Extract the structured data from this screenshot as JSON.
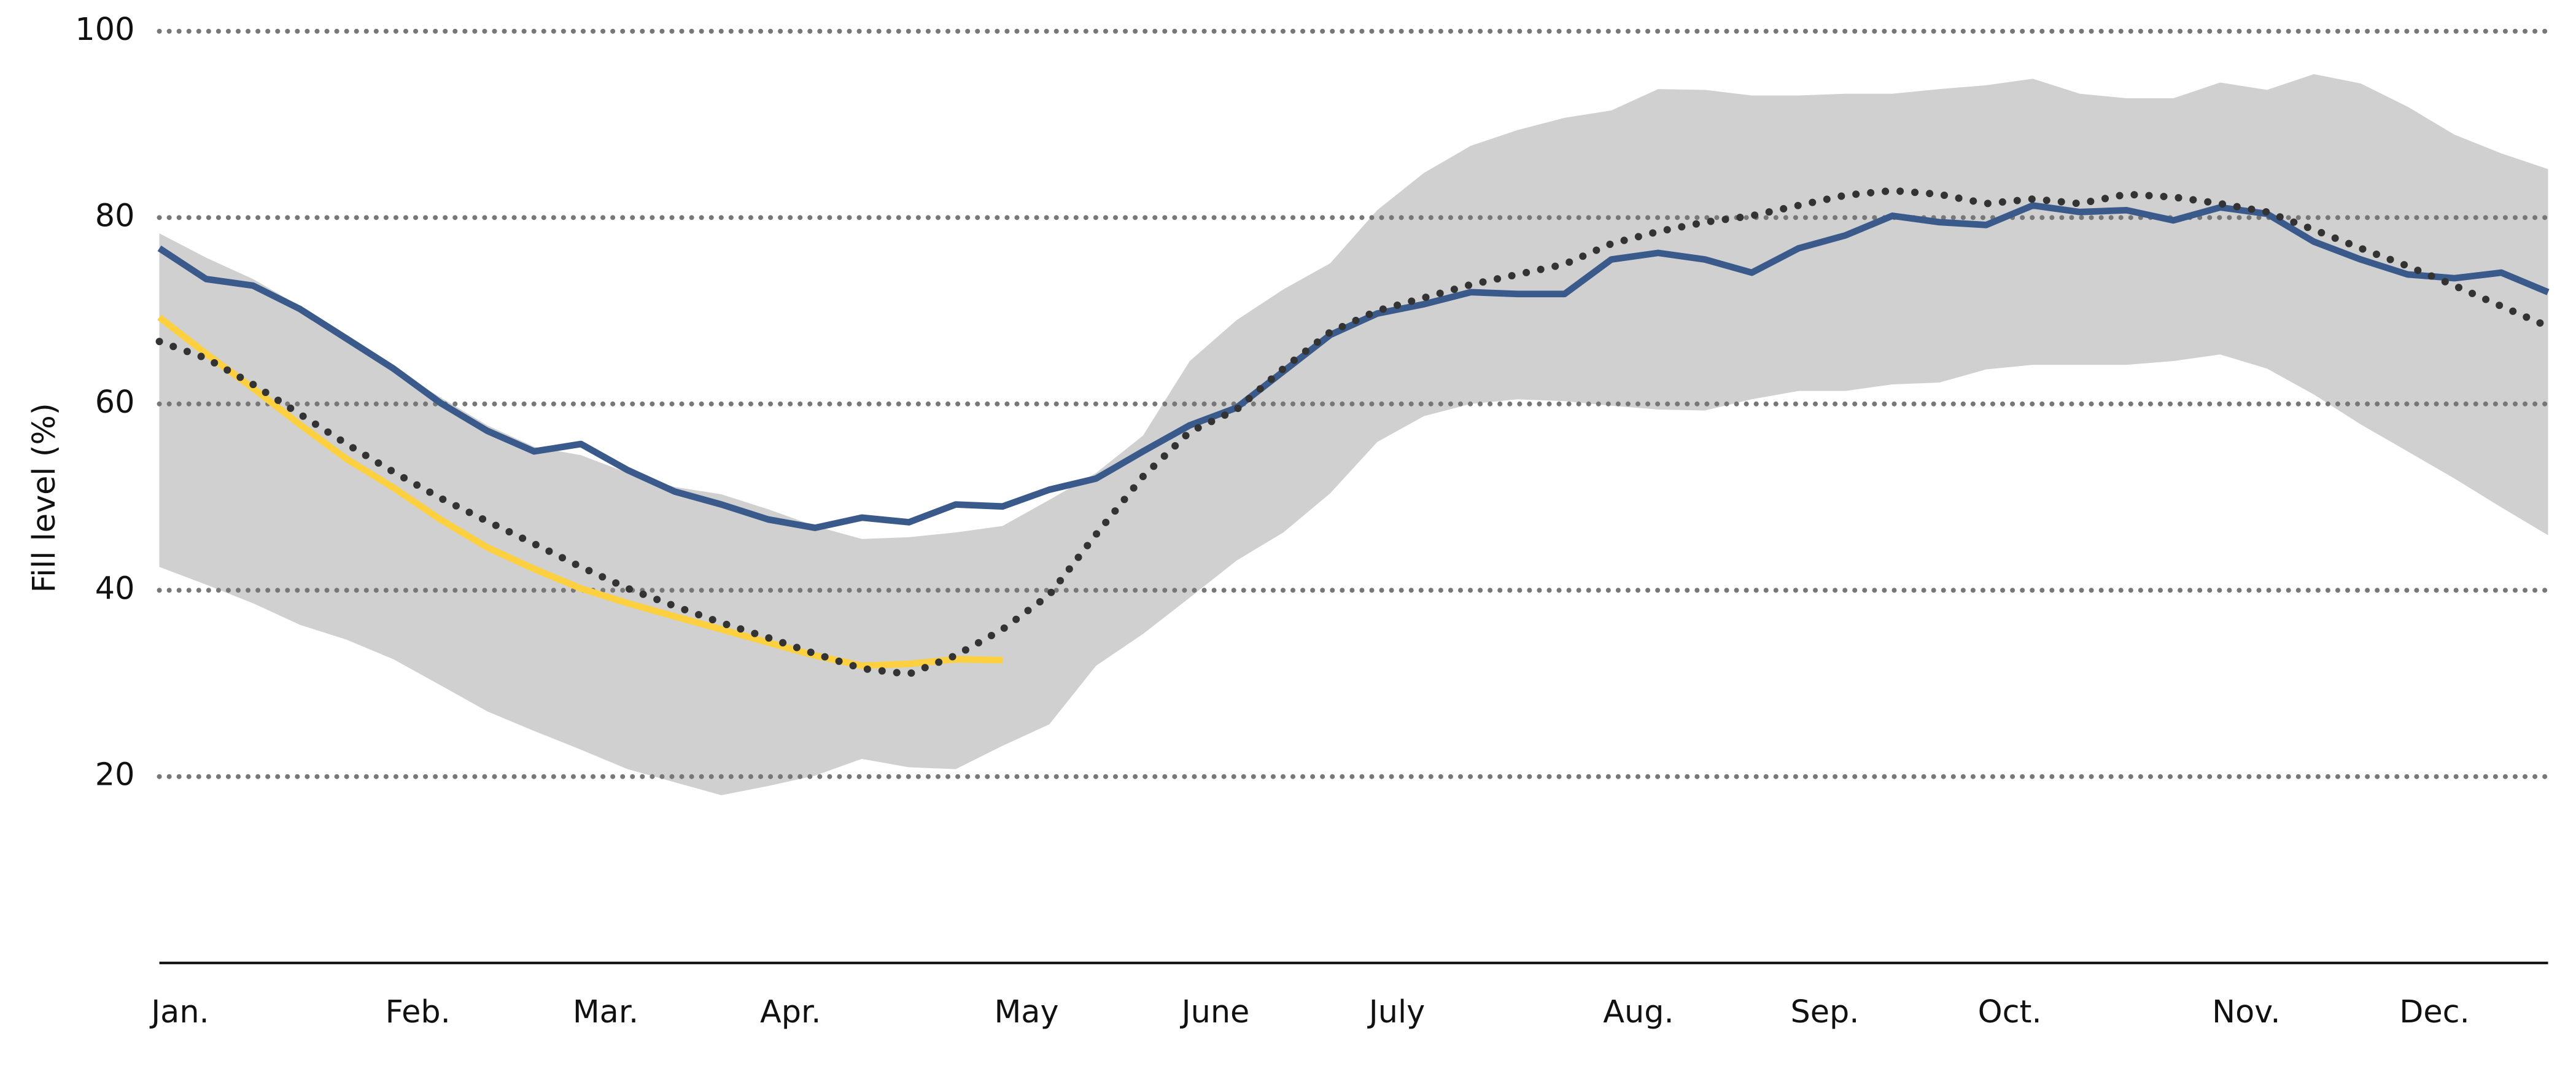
{
  "chart_data": {
    "type": "line",
    "ylabel": "Fill level (%)",
    "categories": [
      "Jan.",
      null,
      null,
      null,
      null,
      "Feb.",
      null,
      null,
      null,
      "Mar.",
      null,
      null,
      null,
      "Apr.",
      null,
      null,
      null,
      null,
      "May",
      null,
      null,
      null,
      "June",
      null,
      null,
      null,
      "July",
      null,
      null,
      null,
      null,
      "Aug.",
      null,
      null,
      null,
      "Sep.",
      null,
      null,
      null,
      "Oct.",
      null,
      null,
      null,
      null,
      "Nov.",
      null,
      null,
      null,
      "Dec.",
      null,
      null,
      null
    ],
    "ylim": [
      0,
      100
    ],
    "yticks": [
      20,
      40,
      60,
      80,
      100
    ],
    "grid": true,
    "band": {
      "color": "#d0d0d0",
      "upper": [
        78.3,
        75.7,
        73.4,
        70.5,
        67.2,
        63.8,
        60.7,
        57.7,
        55.4,
        54.5,
        52.6,
        51.1,
        50.3,
        48.7,
        46.9,
        45.5,
        45.7,
        46.2,
        46.9,
        49.7,
        52.6,
        56.6,
        64.6,
        69.0,
        72.3,
        75.1,
        80.8,
        84.8,
        87.7,
        89.4,
        90.7,
        91.5,
        93.8,
        93.7,
        93.1,
        93.1,
        93.3,
        93.3,
        93.8,
        94.2,
        94.9,
        93.3,
        92.8,
        92.8,
        94.5,
        93.7,
        95.4,
        94.4,
        91.9,
        88.9,
        86.9,
        85.2
      ],
      "lower": [
        42.5,
        40.6,
        38.6,
        36.3,
        34.7,
        32.6,
        29.8,
        27.0,
        24.9,
        22.9,
        20.8,
        19.4,
        18.0,
        19.0,
        20.1,
        21.9,
        21.0,
        20.8,
        23.3,
        25.6,
        31.9,
        35.3,
        39.2,
        43.2,
        46.2,
        50.4,
        55.9,
        58.7,
        60.0,
        60.5,
        60.3,
        59.8,
        59.4,
        59.3,
        60.5,
        61.4,
        61.4,
        62.1,
        62.3,
        63.7,
        64.2,
        64.2,
        64.2,
        64.6,
        65.3,
        63.8,
        61.0,
        57.8,
        54.9,
        52.0,
        48.9,
        45.9
      ]
    },
    "series": [
      {
        "color": "#3a5a8c",
        "style": "solid",
        "values": [
          76.7,
          73.4,
          72.7,
          70.2,
          67.0,
          63.8,
          60.1,
          57.1,
          54.9,
          55.7,
          52.9,
          50.6,
          49.2,
          47.6,
          46.7,
          47.8,
          47.3,
          49.2,
          49.0,
          50.8,
          52.0,
          54.9,
          57.7,
          59.6,
          63.5,
          67.4,
          69.7,
          70.7,
          72.0,
          71.8,
          71.8,
          75.5,
          76.2,
          75.5,
          74.1,
          76.7,
          78.1,
          80.2,
          79.5,
          79.2,
          81.3,
          80.6,
          80.8,
          79.7,
          81.1,
          80.4,
          77.4,
          75.5,
          73.9,
          73.5,
          74.1,
          72.0
        ]
      },
      {
        "color": "#fdd03f",
        "style": "solid",
        "values": [
          69.3,
          65.4,
          61.7,
          57.8,
          54.1,
          51.0,
          47.6,
          44.6,
          42.3,
          40.2,
          38.6,
          37.2,
          35.8,
          34.4,
          33.0,
          31.9,
          32.1,
          32.6,
          32.5,
          null,
          null,
          null,
          null,
          null,
          null,
          null,
          null,
          null,
          null,
          null,
          null,
          null,
          null,
          null,
          null,
          null,
          null,
          null,
          null,
          null,
          null,
          null,
          null,
          null,
          null,
          null,
          null,
          null,
          null,
          null,
          null,
          null
        ]
      },
      {
        "color": "#333333",
        "style": "dotted",
        "values": [
          66.7,
          64.9,
          62.1,
          58.9,
          55.7,
          52.7,
          49.9,
          47.4,
          45.0,
          42.5,
          40.2,
          38.3,
          36.5,
          34.9,
          33.2,
          31.6,
          31.0,
          33.0,
          35.8,
          39.5,
          46.0,
          52.2,
          57.0,
          59.4,
          63.8,
          67.7,
          70.0,
          71.4,
          72.8,
          73.9,
          75.0,
          77.2,
          78.5,
          79.5,
          80.2,
          81.3,
          82.4,
          82.9,
          82.5,
          81.5,
          82.0,
          81.5,
          82.5,
          82.2,
          81.5,
          80.6,
          78.7,
          76.7,
          74.8,
          72.7,
          70.5,
          68.3
        ]
      }
    ]
  }
}
